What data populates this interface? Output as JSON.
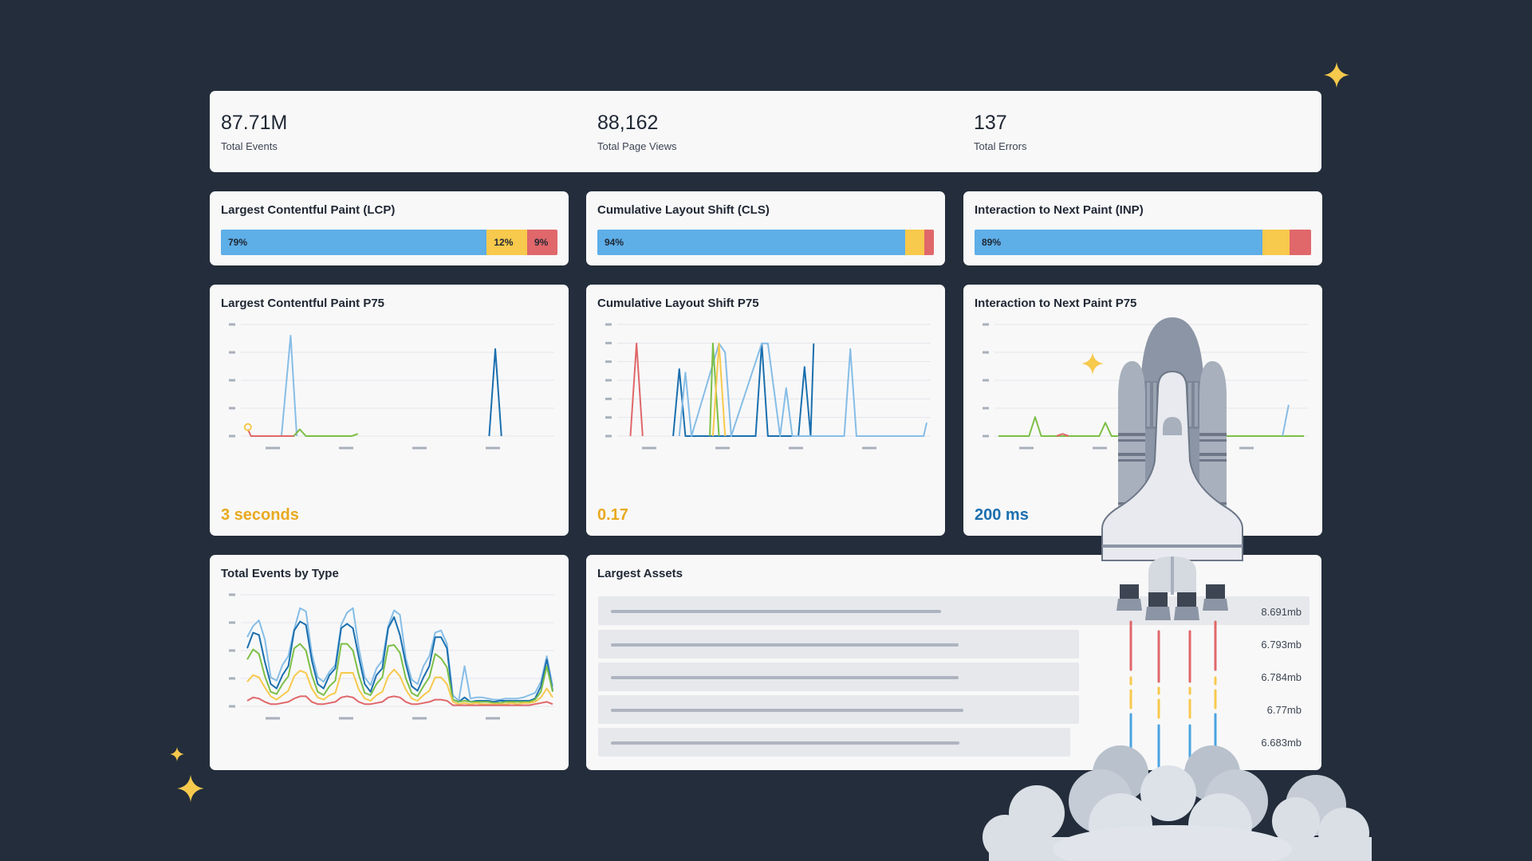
{
  "summary": {
    "stats": [
      {
        "value": "87.71M",
        "label": "Total Events"
      },
      {
        "value": "88,162",
        "label": "Total Page Views"
      },
      {
        "value": "137",
        "label": "Total Errors"
      }
    ]
  },
  "vitals": [
    {
      "title": "Largest Contentful Paint (LCP)",
      "segments": [
        {
          "pct": 79,
          "label": "79%"
        },
        {
          "pct": 12,
          "label": "12%"
        },
        {
          "pct": 9,
          "label": "9%"
        }
      ]
    },
    {
      "title": "Cumulative Layout Shift (CLS)",
      "segments": [
        {
          "pct": 94,
          "label": "94%"
        },
        {
          "pct": 4,
          "label": ""
        },
        {
          "pct": 2,
          "label": ""
        }
      ]
    },
    {
      "title": "Interaction to Next Paint (INP)",
      "segments": [
        {
          "pct": 89,
          "label": "89%"
        },
        {
          "pct": 6,
          "label": ""
        },
        {
          "pct": 5,
          "label": ""
        }
      ]
    }
  ],
  "p75": [
    {
      "title": "Largest Contentful Paint P75",
      "value": "3 seconds",
      "value_color": "#e9a91f"
    },
    {
      "title": "Cumulative Layout Shift P75",
      "value": "0.17",
      "value_color": "#e9a91f"
    },
    {
      "title": "Interaction to Next Paint P75",
      "value": "200 ms",
      "value_color": "#1b6fae"
    }
  ],
  "events_by_type": {
    "title": "Total Events by Type"
  },
  "largest_assets": {
    "title": "Largest Assets",
    "rows": [
      {
        "size": "8.691mb"
      },
      {
        "size": "6.793mb"
      },
      {
        "size": "6.784mb"
      },
      {
        "size": "6.77mb"
      },
      {
        "size": "6.683mb"
      }
    ]
  },
  "colors": {
    "good": "#5eaee8",
    "needs_improvement": "#f7c94c",
    "poor": "#e0676a",
    "dark_blue": "#1a6fae",
    "green": "#7cbf47",
    "background": "#232d3b",
    "card": "#f8f8f9"
  },
  "chart_data": [
    {
      "type": "line",
      "title": "Largest Contentful Paint P75",
      "series": [
        {
          "name": "light-blue",
          "color": "#86bde6",
          "points": [
            [
              0.12,
              0
            ],
            [
              0.15,
              0.9
            ],
            [
              0.17,
              0
            ]
          ]
        },
        {
          "name": "dark-blue",
          "color": "#1a6fae",
          "points": [
            [
              0.8,
              0
            ],
            [
              0.82,
              0.78
            ],
            [
              0.84,
              0
            ]
          ]
        },
        {
          "name": "red",
          "color": "#e0676a",
          "points": [
            [
              0.01,
              0.06
            ],
            [
              0.02,
              0
            ],
            [
              0.16,
              0
            ],
            [
              0.18,
              0.06
            ]
          ]
        },
        {
          "name": "green",
          "color": "#7cbf47",
          "points": [
            [
              0.16,
              0
            ],
            [
              0.18,
              0.06
            ],
            [
              0.2,
              0
            ],
            [
              0.35,
              0
            ],
            [
              0.37,
              0.02
            ]
          ]
        },
        {
          "name": "yellow",
          "color": "#f7c94c",
          "points": [
            [
              0.01,
              0.08
            ]
          ]
        }
      ],
      "yticks": 5,
      "xticks": 4
    },
    {
      "type": "line",
      "title": "Cumulative Layout Shift P75",
      "series": [
        {
          "name": "red",
          "color": "#e0676a",
          "points": [
            [
              0.03,
              0
            ],
            [
              0.05,
              0.83
            ],
            [
              0.07,
              0
            ]
          ]
        },
        {
          "name": "dark-blue",
          "color": "#1a6fae",
          "points": [
            [
              0.17,
              0
            ],
            [
              0.19,
              0.6
            ],
            [
              0.21,
              0
            ],
            [
              0.44,
              0
            ],
            [
              0.46,
              0.83
            ],
            [
              0.48,
              0
            ],
            [
              0.58,
              0
            ],
            [
              0.6,
              0.62
            ],
            [
              0.62,
              0
            ],
            [
              0.63,
              0.83
            ]
          ]
        },
        {
          "name": "light-blue",
          "color": "#86bde6",
          "points": [
            [
              0.19,
              0
            ],
            [
              0.21,
              0.57
            ],
            [
              0.23,
              0
            ],
            [
              0.32,
              0.83
            ],
            [
              0.34,
              0.75
            ],
            [
              0.36,
              0
            ],
            [
              0.46,
              0.83
            ],
            [
              0.48,
              0.83
            ],
            [
              0.52,
              0
            ],
            [
              0.54,
              0.43
            ],
            [
              0.56,
              0
            ],
            [
              0.73,
              0
            ],
            [
              0.75,
              0.78
            ],
            [
              0.77,
              0
            ],
            [
              0.99,
              0
            ],
            [
              1.0,
              0.12
            ]
          ]
        },
        {
          "name": "green",
          "color": "#7cbf47",
          "points": [
            [
              0.29,
              0
            ],
            [
              0.3,
              0.83
            ],
            [
              0.32,
              0
            ]
          ]
        },
        {
          "name": "yellow",
          "color": "#f7c94c",
          "points": [
            [
              0.3,
              0
            ],
            [
              0.32,
              0.83
            ],
            [
              0.34,
              0
            ]
          ]
        }
      ],
      "yticks": 7,
      "xticks": 4
    },
    {
      "type": "line",
      "title": "Interaction to Next Paint P75",
      "series": [
        {
          "name": "green",
          "color": "#7cbf47",
          "points": [
            [
              0,
              0
            ],
            [
              0.1,
              0
            ],
            [
              0.12,
              0.17
            ],
            [
              0.14,
              0
            ],
            [
              0.33,
              0
            ],
            [
              0.35,
              0.12
            ],
            [
              0.37,
              0
            ],
            [
              1,
              0
            ]
          ]
        },
        {
          "name": "red",
          "color": "#e0676a",
          "points": [
            [
              0.19,
              0
            ],
            [
              0.21,
              0.02
            ],
            [
              0.23,
              0
            ]
          ]
        },
        {
          "name": "light-blue",
          "color": "#86bde6",
          "points": [
            [
              0.93,
              0
            ],
            [
              0.95,
              0.28
            ]
          ]
        }
      ],
      "yticks": 5,
      "xticks": 4
    },
    {
      "type": "line",
      "title": "Total Events by Type",
      "series": [
        {
          "name": "light-blue",
          "color": "#86bde6",
          "values": [
            0.62,
            0.72,
            0.77,
            0.6,
            0.26,
            0.23,
            0.37,
            0.45,
            0.69,
            0.88,
            0.85,
            0.47,
            0.26,
            0.22,
            0.31,
            0.37,
            0.73,
            0.84,
            0.88,
            0.52,
            0.26,
            0.19,
            0.34,
            0.41,
            0.72,
            0.86,
            0.82,
            0.43,
            0.24,
            0.2,
            0.36,
            0.45,
            0.66,
            0.68,
            0.56,
            0.1,
            0.05,
            0.36,
            0.07,
            0.08,
            0.08,
            0.07,
            0.06,
            0.06,
            0.07,
            0.07,
            0.07,
            0.08,
            0.1,
            0.12,
            0.22,
            0.45,
            0.18
          ]
        },
        {
          "name": "dark-blue",
          "color": "#1a6fae",
          "values": [
            0.52,
            0.66,
            0.64,
            0.4,
            0.2,
            0.16,
            0.28,
            0.36,
            0.68,
            0.76,
            0.73,
            0.41,
            0.2,
            0.16,
            0.28,
            0.34,
            0.7,
            0.74,
            0.7,
            0.44,
            0.2,
            0.13,
            0.28,
            0.34,
            0.7,
            0.8,
            0.64,
            0.38,
            0.18,
            0.14,
            0.26,
            0.36,
            0.62,
            0.62,
            0.52,
            0.06,
            0.04,
            0.08,
            0.04,
            0.05,
            0.05,
            0.05,
            0.04,
            0.05,
            0.05,
            0.05,
            0.05,
            0.05,
            0.05,
            0.07,
            0.18,
            0.42,
            0.14
          ]
        },
        {
          "name": "green",
          "color": "#7cbf47",
          "values": [
            0.42,
            0.51,
            0.47,
            0.27,
            0.13,
            0.11,
            0.2,
            0.27,
            0.52,
            0.56,
            0.5,
            0.28,
            0.13,
            0.1,
            0.18,
            0.23,
            0.56,
            0.56,
            0.5,
            0.28,
            0.12,
            0.1,
            0.2,
            0.26,
            0.54,
            0.55,
            0.48,
            0.25,
            0.12,
            0.09,
            0.18,
            0.26,
            0.47,
            0.43,
            0.35,
            0.06,
            0.04,
            0.05,
            0.04,
            0.04,
            0.04,
            0.04,
            0.03,
            0.03,
            0.04,
            0.04,
            0.04,
            0.04,
            0.04,
            0.06,
            0.13,
            0.36,
            0.13
          ]
        },
        {
          "name": "yellow",
          "color": "#f7c94c",
          "values": [
            0.22,
            0.28,
            0.26,
            0.17,
            0.09,
            0.06,
            0.1,
            0.14,
            0.27,
            0.32,
            0.3,
            0.16,
            0.08,
            0.06,
            0.1,
            0.12,
            0.3,
            0.3,
            0.3,
            0.15,
            0.07,
            0.05,
            0.1,
            0.13,
            0.27,
            0.33,
            0.27,
            0.15,
            0.07,
            0.05,
            0.1,
            0.14,
            0.26,
            0.26,
            0.2,
            0.04,
            0.02,
            0.03,
            0.02,
            0.03,
            0.02,
            0.02,
            0.02,
            0.02,
            0.02,
            0.03,
            0.02,
            0.03,
            0.03,
            0.04,
            0.08,
            0.16,
            0.08
          ]
        },
        {
          "name": "red",
          "color": "#e0676a",
          "values": [
            0.05,
            0.08,
            0.07,
            0.04,
            0.02,
            0.02,
            0.03,
            0.04,
            0.07,
            0.09,
            0.09,
            0.04,
            0.02,
            0.02,
            0.03,
            0.04,
            0.08,
            0.09,
            0.08,
            0.04,
            0.02,
            0.02,
            0.03,
            0.04,
            0.08,
            0.09,
            0.08,
            0.04,
            0.02,
            0.02,
            0.03,
            0.04,
            0.06,
            0.06,
            0.05,
            0.01,
            0.01,
            0.01,
            0.01,
            0.01,
            0.01,
            0.01,
            0.01,
            0.01,
            0.01,
            0.01,
            0.01,
            0.01,
            0.01,
            0.02,
            0.03,
            0.04,
            0.02
          ]
        }
      ],
      "yticks": 5,
      "xticks": 4
    }
  ]
}
